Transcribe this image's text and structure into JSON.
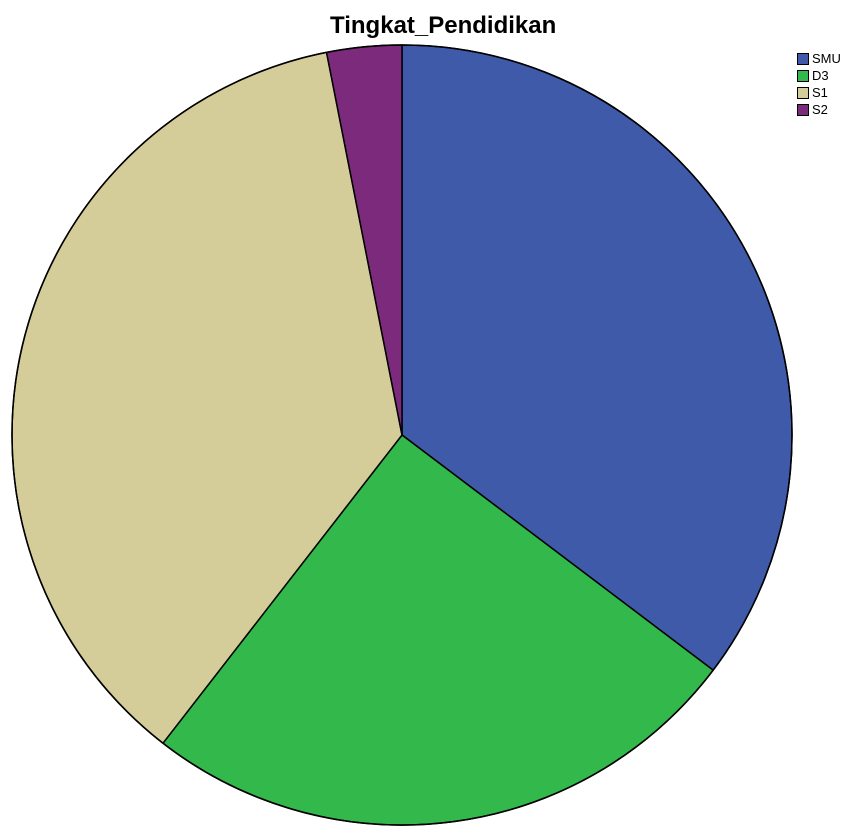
{
  "chart_data": {
    "type": "pie",
    "title": "Tingkat_Pendidikan",
    "legend_position": "top-right",
    "start_angle": "12 o'clock",
    "direction": "clockwise",
    "slices": [
      {
        "label": "SMU",
        "value": 35.3,
        "color": "#3f5aa9"
      },
      {
        "label": "D3",
        "value": 25.2,
        "color": "#32b84b"
      },
      {
        "label": "S1",
        "value": 36.4,
        "color": "#d4cc99"
      },
      {
        "label": "S2",
        "value": 3.1,
        "color": "#7b2a7c"
      }
    ]
  }
}
